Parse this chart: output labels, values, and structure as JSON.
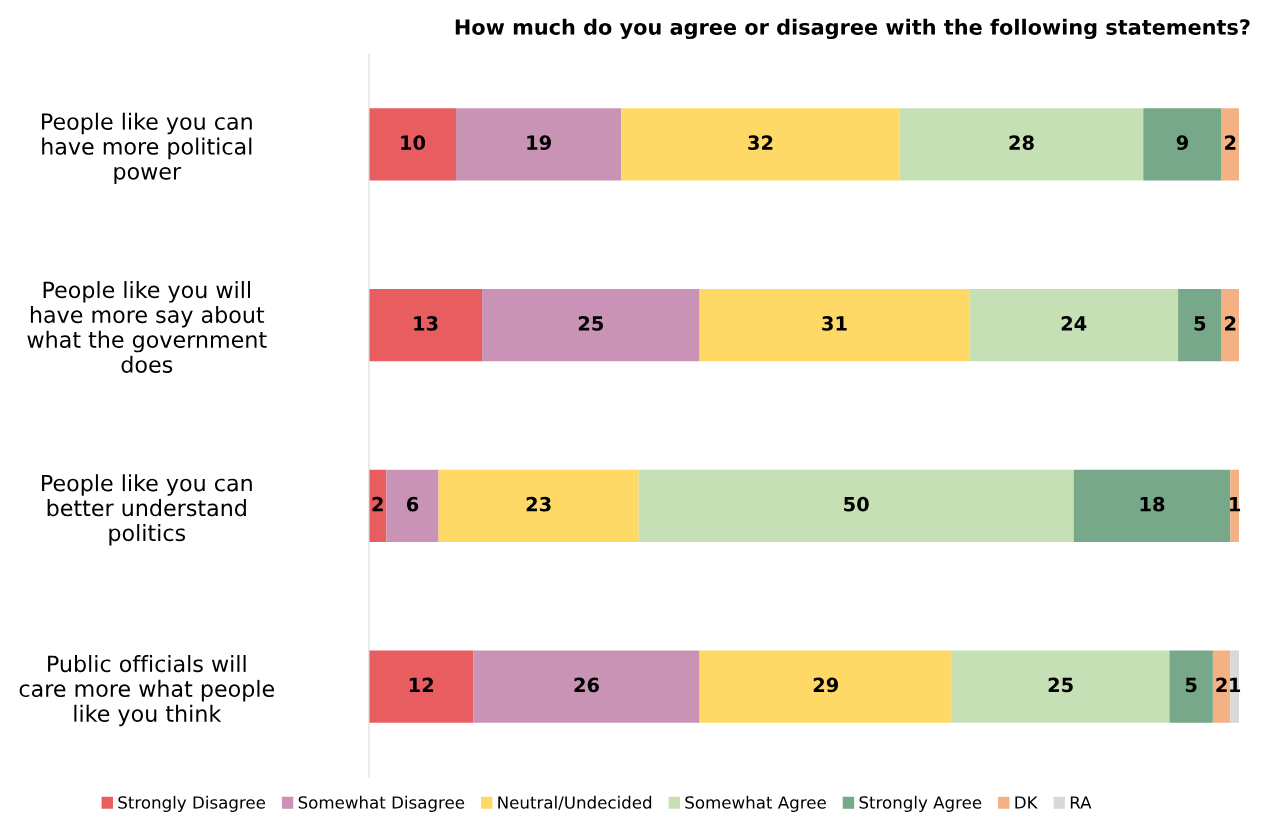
{
  "chart_data": {
    "type": "bar",
    "orientation": "horizontal",
    "stacked": true,
    "title": "How much do you agree or disagree with the following statements?",
    "categories": [
      "People like you can have more political power",
      "People like you will have more say about what the government does",
      "People like you can better understand politics",
      "Public officials will care more what people like you think"
    ],
    "series": [
      {
        "name": "Strongly Disagree",
        "color": "#e85d5f",
        "values": [
          10,
          13,
          2,
          12
        ]
      },
      {
        "name": "Somewhat Disagree",
        "color": "#c993b5",
        "values": [
          19,
          25,
          6,
          26
        ]
      },
      {
        "name": "Neutral/Undecided",
        "color": "#fed966",
        "values": [
          32,
          31,
          23,
          29
        ]
      },
      {
        "name": "Somewhat Agree",
        "color": "#c5e0b4",
        "values": [
          28,
          24,
          50,
          25
        ]
      },
      {
        "name": "Strongly Agree",
        "color": "#77a88a",
        "values": [
          9,
          5,
          18,
          5
        ]
      },
      {
        "name": "DK",
        "color": "#f4b183",
        "values": [
          2,
          2,
          1,
          2
        ]
      },
      {
        "name": "RA",
        "color": "#d9d9d9",
        "values": [
          null,
          null,
          null,
          1
        ]
      }
    ],
    "data_labels": true,
    "legend": "bottom",
    "grid": false,
    "tick_labels": "y"
  }
}
